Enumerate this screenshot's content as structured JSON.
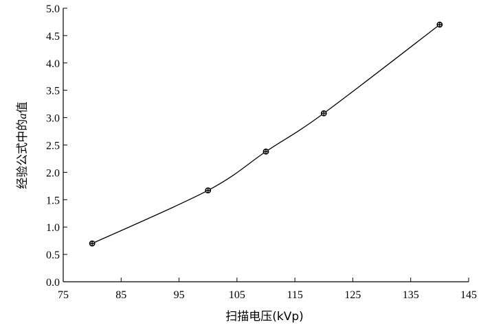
{
  "chart_data": {
    "type": "scatter",
    "title": "",
    "xlabel": "扫描电压(kVp)",
    "ylabel": {
      "prefix": "经验公式中的",
      "symbol": "a",
      "suffix": "值"
    },
    "xlim": [
      75,
      145
    ],
    "ylim": [
      0.0,
      5.0
    ],
    "x_ticks": [
      75,
      85,
      95,
      105,
      115,
      125,
      135,
      145
    ],
    "x_tick_labels": [
      "75",
      "85",
      "95",
      "105",
      "115",
      "125",
      "135",
      "145"
    ],
    "y_ticks": [
      0.0,
      0.5,
      1.0,
      1.5,
      2.0,
      2.5,
      3.0,
      3.5,
      4.0,
      4.5,
      5.0
    ],
    "y_tick_labels": [
      "0.0",
      "0.5",
      "1.0",
      "1.5",
      "2.0",
      "2.5",
      "3.0",
      "3.5",
      "4.0",
      "4.5",
      "5.0"
    ],
    "grid": false,
    "legend": "none",
    "series": [
      {
        "marker": "circle-cross",
        "points": [
          {
            "x": 80,
            "y": 0.7
          },
          {
            "x": 100,
            "y": 1.67
          },
          {
            "x": 110,
            "y": 2.38
          },
          {
            "x": 120,
            "y": 3.08
          },
          {
            "x": 140,
            "y": 4.7
          }
        ],
        "fit": "smooth-curve"
      }
    ]
  }
}
